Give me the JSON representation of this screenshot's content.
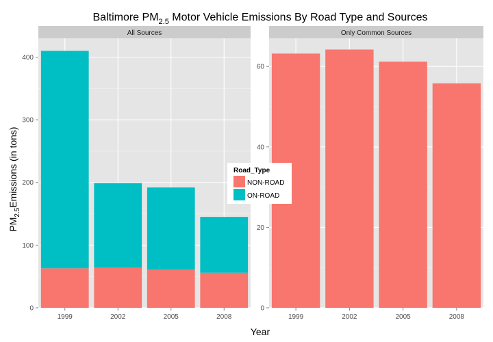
{
  "chart_data": {
    "type": "bar",
    "title_main": "Baltimore PM",
    "title_sub": "2.5",
    "title_rest": " Motor Vehicle Emissions By Road Type and Sources",
    "xlabel": "Year",
    "ylabel_main": "PM",
    "ylabel_sub": "2.5",
    "ylabel_rest": "Emissions (in tons)",
    "legend": {
      "title": "Road_Type",
      "entries": [
        {
          "label": "NON-ROAD",
          "color": "#F8766D"
        },
        {
          "label": "ON-ROAD",
          "color": "#00BFC4"
        }
      ]
    },
    "colors": {
      "panel_bg": "#E5E5E5",
      "grid": "#ffffff",
      "strip_bg": "#CCCCCC"
    },
    "panels": [
      {
        "strip": "All Sources",
        "categories": [
          "1999",
          "2002",
          "2005",
          "2008"
        ],
        "ylim": [
          0,
          430
        ],
        "yticks": [
          0,
          100,
          200,
          300,
          400
        ],
        "stacked": true,
        "series": [
          {
            "name": "NON-ROAD",
            "values": [
              63,
              64,
              61,
              56
            ]
          },
          {
            "name": "ON-ROAD",
            "values": [
              347,
              135,
              131,
              89
            ]
          }
        ]
      },
      {
        "strip": "Only Common Sources",
        "categories": [
          "1999",
          "2002",
          "2005",
          "2008"
        ],
        "ylim": [
          0,
          67
        ],
        "yticks": [
          0,
          20,
          40,
          60
        ],
        "stacked": true,
        "series": [
          {
            "name": "NON-ROAD",
            "values": [
              63.2,
              64.2,
              61.2,
              55.8
            ]
          }
        ]
      }
    ]
  }
}
